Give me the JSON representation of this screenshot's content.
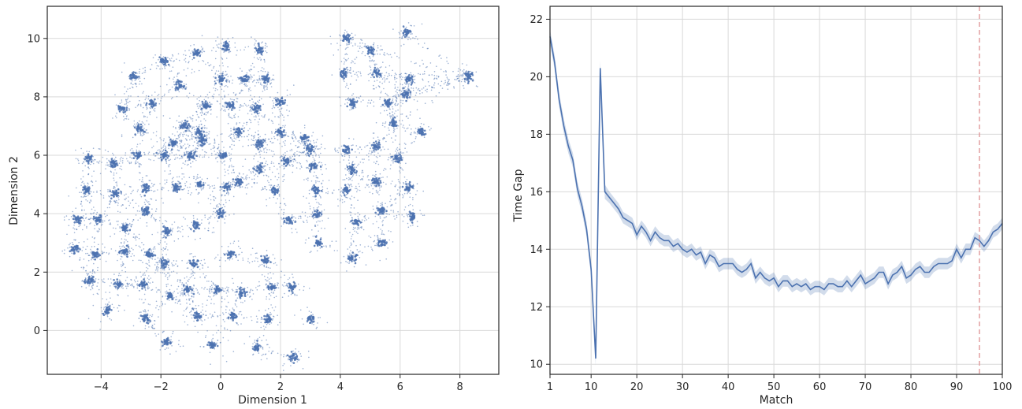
{
  "chart_data": [
    {
      "type": "scatter",
      "title": "",
      "xlabel": "Dimension 1",
      "ylabel": "Dimension 2",
      "xlim": [
        -5.8,
        9.3
      ],
      "ylim": [
        -1.5,
        11.1
      ],
      "xticks": [
        "−4",
        "−2",
        "0",
        "2",
        "4",
        "6",
        "8"
      ],
      "yticks": [
        "0",
        "2",
        "4",
        "6",
        "8",
        "10"
      ],
      "xtick_values": [
        -4,
        -2,
        0,
        2,
        4,
        6,
        8
      ],
      "ytick_values": [
        0,
        2,
        4,
        6,
        8,
        10
      ],
      "grid": true,
      "marker_color": "#4C72B0",
      "series": [
        {
          "clusters_left_group": [
            [
              -4.4,
              5.9
            ],
            [
              -3.6,
              5.7
            ],
            [
              -2.8,
              6.0
            ],
            [
              -1.9,
              6.0
            ],
            [
              -1.0,
              6.0
            ],
            [
              -0.6,
              6.5
            ],
            [
              0.1,
              6.0
            ],
            [
              -4.5,
              4.8
            ],
            [
              -3.5,
              4.7
            ],
            [
              -2.5,
              4.9
            ],
            [
              -1.5,
              4.9
            ],
            [
              -0.7,
              5.0
            ],
            [
              0.2,
              4.9
            ],
            [
              0.6,
              5.1
            ],
            [
              -4.8,
              3.8
            ],
            [
              -4.1,
              3.8
            ],
            [
              -3.2,
              3.5
            ],
            [
              -2.5,
              4.1
            ],
            [
              -1.8,
              3.4
            ],
            [
              -0.8,
              3.6
            ],
            [
              0.0,
              4.0
            ],
            [
              -4.9,
              2.8
            ],
            [
              -4.2,
              2.6
            ],
            [
              -3.2,
              2.7
            ],
            [
              -2.4,
              2.6
            ],
            [
              -1.9,
              2.3
            ],
            [
              -0.9,
              2.3
            ],
            [
              0.3,
              2.6
            ],
            [
              -4.4,
              1.7
            ],
            [
              -3.4,
              1.6
            ],
            [
              -2.6,
              1.6
            ],
            [
              -1.7,
              1.2
            ],
            [
              -1.1,
              1.4
            ],
            [
              -0.1,
              1.4
            ],
            [
              0.7,
              1.3
            ],
            [
              -3.8,
              0.7
            ],
            [
              -2.5,
              0.4
            ],
            [
              -1.8,
              -0.4
            ],
            [
              -0.8,
              0.5
            ],
            [
              -0.3,
              -0.5
            ],
            [
              0.4,
              0.5
            ],
            [
              1.2,
              -0.6
            ],
            [
              1.5,
              2.4
            ],
            [
              1.7,
              1.5
            ],
            [
              2.4,
              1.5
            ],
            [
              1.6,
              0.4
            ],
            [
              2.4,
              -0.9
            ],
            [
              3.0,
              0.4
            ]
          ],
          "clusters_upper_left": [
            [
              -2.9,
              8.7
            ],
            [
              -1.9,
              9.2
            ],
            [
              -0.8,
              9.5
            ],
            [
              0.2,
              9.7
            ],
            [
              1.3,
              9.6
            ],
            [
              -3.3,
              7.6
            ],
            [
              -2.3,
              7.8
            ],
            [
              -1.4,
              8.4
            ],
            [
              -0.5,
              7.7
            ],
            [
              0.0,
              8.6
            ],
            [
              0.8,
              8.6
            ],
            [
              1.5,
              8.6
            ],
            [
              -2.7,
              6.9
            ],
            [
              -1.6,
              6.4
            ],
            [
              -1.2,
              7.0
            ],
            [
              0.3,
              7.7
            ],
            [
              1.2,
              7.6
            ],
            [
              2.0,
              7.8
            ],
            [
              -0.7,
              6.8
            ],
            [
              0.6,
              6.8
            ],
            [
              1.3,
              6.4
            ],
            [
              2.0,
              6.8
            ],
            [
              2.8,
              6.6
            ]
          ],
          "clusters_right_group": [
            [
              4.2,
              10.0
            ],
            [
              5.0,
              9.6
            ],
            [
              6.2,
              10.2
            ],
            [
              4.1,
              8.8
            ],
            [
              5.2,
              8.8
            ],
            [
              6.3,
              8.6
            ],
            [
              8.3,
              8.7
            ],
            [
              4.4,
              7.8
            ],
            [
              5.6,
              7.8
            ],
            [
              6.2,
              8.1
            ],
            [
              5.8,
              7.1
            ],
            [
              6.7,
              6.8
            ],
            [
              3.0,
              6.2
            ],
            [
              4.2,
              6.2
            ],
            [
              5.2,
              6.3
            ],
            [
              5.9,
              5.9
            ],
            [
              1.3,
              5.5
            ],
            [
              2.2,
              5.8
            ],
            [
              3.1,
              5.6
            ],
            [
              4.4,
              5.5
            ],
            [
              5.2,
              5.1
            ],
            [
              6.3,
              4.9
            ],
            [
              1.8,
              4.8
            ],
            [
              3.2,
              4.8
            ],
            [
              4.2,
              4.8
            ],
            [
              5.4,
              4.1
            ],
            [
              6.4,
              3.9
            ],
            [
              2.3,
              3.8
            ],
            [
              3.2,
              4.0
            ],
            [
              4.5,
              3.7
            ],
            [
              5.4,
              3.0
            ],
            [
              3.3,
              3.0
            ],
            [
              4.4,
              2.5
            ]
          ]
        }
      ]
    },
    {
      "type": "line",
      "title": "",
      "xlabel": "Match",
      "ylabel": "Time Gap",
      "xlim": [
        1,
        100
      ],
      "ylim": [
        9.65,
        22.45
      ],
      "xticks": [
        "1",
        "10",
        "20",
        "30",
        "40",
        "50",
        "60",
        "70",
        "80",
        "90",
        "100"
      ],
      "yticks": [
        "10",
        "12",
        "14",
        "16",
        "18",
        "20",
        "22"
      ],
      "xtick_values": [
        1,
        10,
        20,
        30,
        40,
        50,
        60,
        70,
        80,
        90,
        100
      ],
      "ytick_values": [
        10,
        12,
        14,
        16,
        18,
        20,
        22
      ],
      "grid": true,
      "line_color": "#4C72B0",
      "band_color": "#4C72B0",
      "reference_line": {
        "x": 95,
        "color": "#E0999A"
      },
      "series": [
        {
          "x": [
            1,
            2,
            3,
            4,
            5,
            6,
            7,
            8,
            9,
            10,
            11,
            12,
            13,
            14,
            15,
            16,
            17,
            18,
            19,
            20,
            21,
            22,
            23,
            24,
            25,
            26,
            27,
            28,
            29,
            30,
            31,
            32,
            33,
            34,
            35,
            36,
            37,
            38,
            39,
            40,
            41,
            42,
            43,
            44,
            45,
            46,
            47,
            48,
            49,
            50,
            51,
            52,
            53,
            54,
            55,
            56,
            57,
            58,
            59,
            60,
            61,
            62,
            63,
            64,
            65,
            66,
            67,
            68,
            69,
            70,
            71,
            72,
            73,
            74,
            75,
            76,
            77,
            78,
            79,
            80,
            81,
            82,
            83,
            84,
            85,
            86,
            87,
            88,
            89,
            90,
            91,
            92,
            93,
            94,
            95,
            96,
            97,
            98,
            99,
            100
          ],
          "y": [
            21.4,
            20.5,
            19.2,
            18.3,
            17.6,
            17.1,
            16.1,
            15.5,
            14.7,
            13.3,
            10.2,
            20.3,
            16.0,
            15.8,
            15.6,
            15.4,
            15.1,
            15.0,
            14.9,
            14.5,
            14.8,
            14.6,
            14.3,
            14.6,
            14.4,
            14.3,
            14.3,
            14.1,
            14.2,
            14.0,
            13.9,
            14.0,
            13.8,
            13.9,
            13.5,
            13.8,
            13.7,
            13.4,
            13.5,
            13.5,
            13.5,
            13.3,
            13.2,
            13.3,
            13.5,
            13.0,
            13.2,
            13.0,
            12.9,
            13.0,
            12.7,
            12.9,
            12.9,
            12.7,
            12.8,
            12.7,
            12.8,
            12.6,
            12.7,
            12.7,
            12.6,
            12.8,
            12.8,
            12.7,
            12.7,
            12.9,
            12.7,
            12.9,
            13.1,
            12.8,
            12.9,
            13.0,
            13.2,
            13.2,
            12.8,
            13.1,
            13.2,
            13.4,
            13.0,
            13.1,
            13.3,
            13.4,
            13.2,
            13.2,
            13.4,
            13.5,
            13.5,
            13.5,
            13.6,
            14.0,
            13.7,
            14.0,
            14.0,
            14.4,
            14.3,
            14.1,
            14.3,
            14.6,
            14.7,
            14.9
          ]
        }
      ]
    }
  ]
}
